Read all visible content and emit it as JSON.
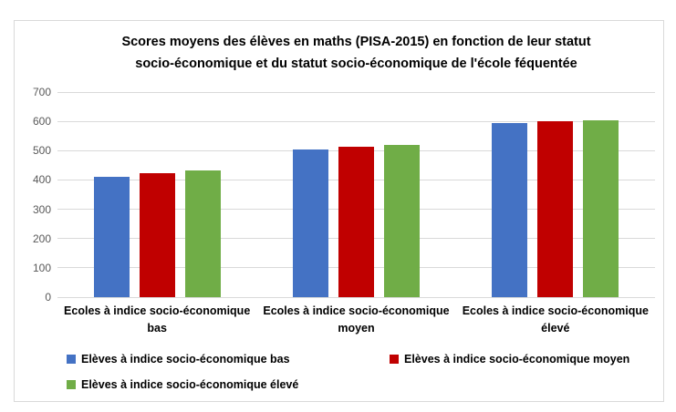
{
  "chart_data": {
    "type": "bar",
    "title": "Scores moyens des élèves en maths (PISA-2015) en fonction de leur statut socio-économique et du statut socio-économique de l'école féquentée",
    "title_lines": [
      "Scores moyens des élèves en maths (PISA-2015) en fonction de leur statut",
      "socio-économique et du statut socio-économique de l'école féquentée"
    ],
    "categories": [
      "Ecoles à indice socio-économique bas",
      "Ecoles à indice socio-économique moyen",
      "Ecoles à indice socio-économique élevé"
    ],
    "category_lines": [
      [
        "Ecoles à indice socio-économique",
        "bas"
      ],
      [
        "Ecoles à indice socio-économique",
        "moyen"
      ],
      [
        "Ecoles à indice socio-économique",
        "élevé"
      ]
    ],
    "series": [
      {
        "name": "Elèves à indice socio-économique bas",
        "color": "#4472C4",
        "values": [
          410,
          505,
          594
        ]
      },
      {
        "name": "Elèves à indice socio-économique moyen",
        "color": "#C00000",
        "values": [
          423,
          512,
          599
        ]
      },
      {
        "name": "Elèves à indice socio-économique élevé",
        "color": "#70AD47",
        "values": [
          434,
          519,
          604
        ]
      }
    ],
    "ylim": [
      0,
      700
    ],
    "yticks": [
      0,
      100,
      200,
      300,
      400,
      500,
      600,
      700
    ],
    "grid": true,
    "legend_position": "bottom",
    "colors": {
      "grid": "#D9D9D9",
      "frame_border": "#D9D9D9",
      "tick_label": "#595959",
      "text": "#000000",
      "background": "#FFFFFF"
    }
  }
}
